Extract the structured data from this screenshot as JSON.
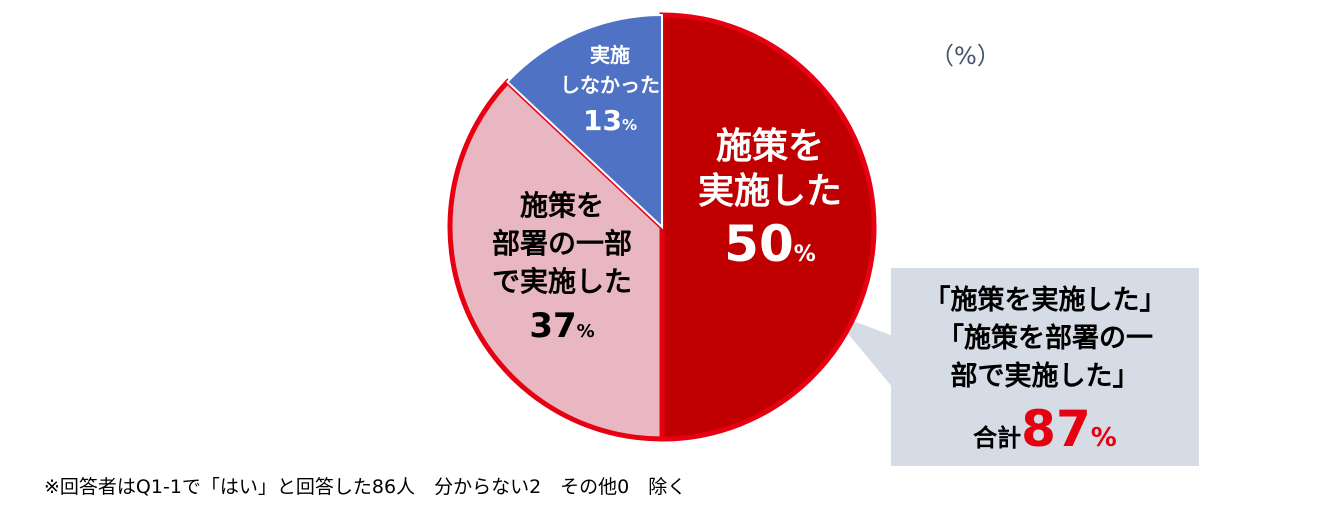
{
  "unit_label": "（%）",
  "chart_data": {
    "type": "pie",
    "slices": [
      {
        "label_lines": [
          "施策を",
          "実施した"
        ],
        "value": 50,
        "unit": "%",
        "color": "#c00000",
        "text_color": "#ffffff"
      },
      {
        "label_lines": [
          "施策を",
          "部署の一部",
          "で実施した"
        ],
        "value": 37,
        "unit": "%",
        "color": "#e8b7c1",
        "text_color": "#000000"
      },
      {
        "label_lines": [
          "実施",
          "しなかった"
        ],
        "value": 13,
        "unit": "%",
        "color": "#4f72c4",
        "text_color": "#ffffff"
      }
    ],
    "highlight_outline_color": "#e60012"
  },
  "callout": {
    "lines": [
      "「施策を実施した」",
      "「施策を部署の一",
      "部で実施した」"
    ],
    "total_label": "合計",
    "total_value": "87",
    "total_unit": "%"
  },
  "footnote": "※回答者はQ1-1で「はい」と回答した86人　分からない2　その他0　除く"
}
